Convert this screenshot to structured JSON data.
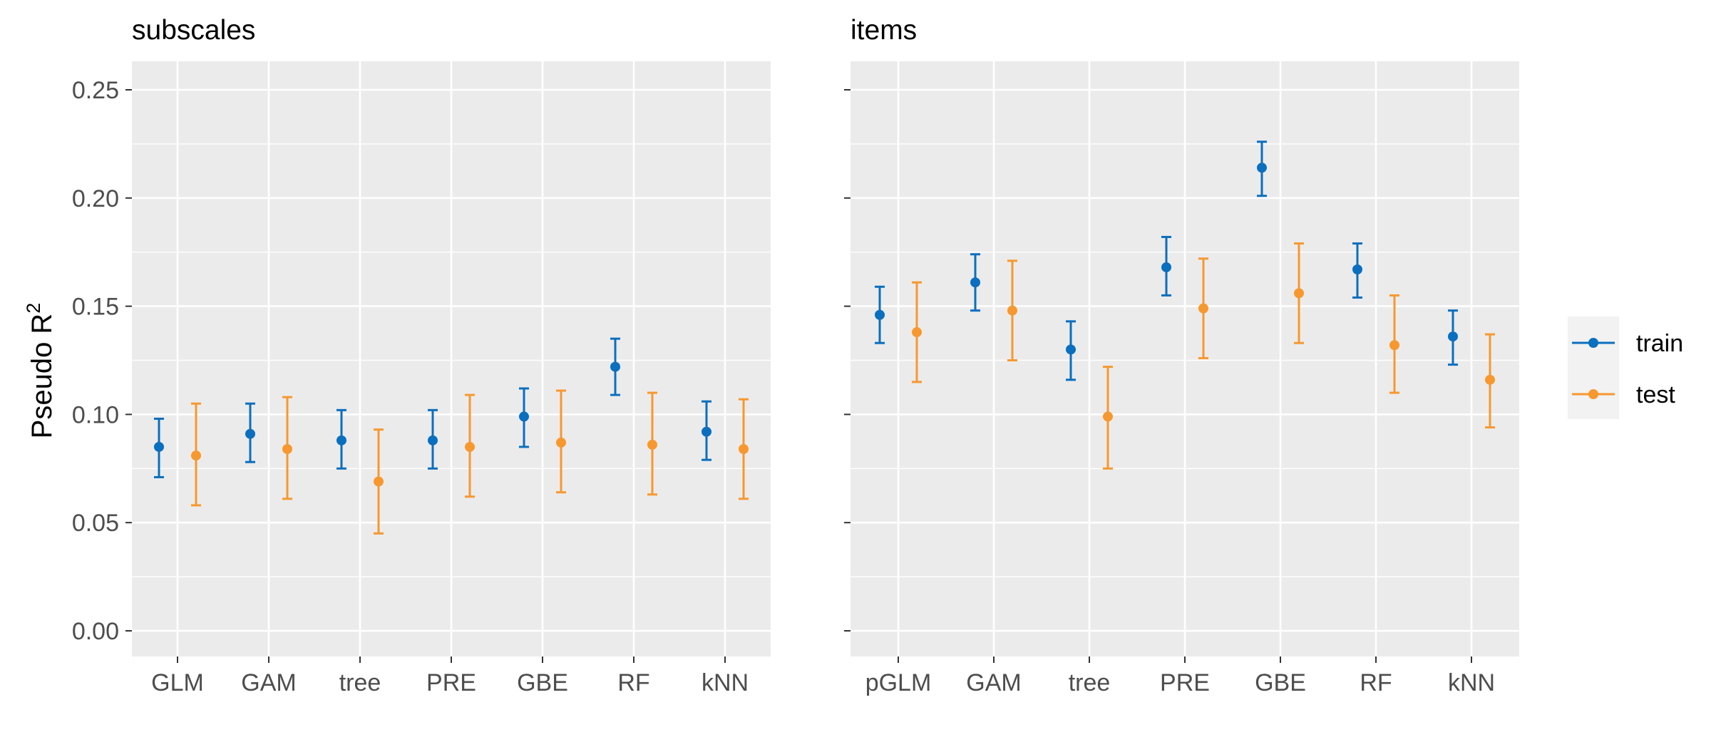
{
  "colors": {
    "train": "#0a6fbf",
    "test": "#f7982f",
    "panel_bg": "#ebebeb",
    "grid": "#ffffff"
  },
  "chart_data": [
    {
      "type": "scatter",
      "title": "subscales",
      "ylabel": "Pseudo R",
      "ylabel_superscript": "2",
      "ylim": [
        0,
        0.26
      ],
      "yticks": [
        "0.00",
        "0.05",
        "0.10",
        "0.15",
        "0.20",
        "0.25"
      ],
      "ytick_values": [
        0,
        0.05,
        0.1,
        0.15,
        0.2,
        0.25
      ],
      "categories": [
        "GLM",
        "GAM",
        "tree",
        "PRE",
        "GBE",
        "RF",
        "kNN"
      ],
      "errorbars": true,
      "series": [
        {
          "name": "train",
          "values": [
            0.085,
            0.091,
            0.088,
            0.088,
            0.099,
            0.122,
            0.092
          ],
          "lower": [
            0.071,
            0.078,
            0.075,
            0.075,
            0.085,
            0.109,
            0.079
          ],
          "upper": [
            0.098,
            0.105,
            0.102,
            0.102,
            0.112,
            0.135,
            0.106
          ]
        },
        {
          "name": "test",
          "values": [
            0.081,
            0.084,
            0.069,
            0.085,
            0.087,
            0.086,
            0.084
          ],
          "lower": [
            0.058,
            0.061,
            0.045,
            0.062,
            0.064,
            0.063,
            0.061
          ],
          "upper": [
            0.105,
            0.108,
            0.093,
            0.109,
            0.111,
            0.11,
            0.107
          ]
        }
      ]
    },
    {
      "type": "scatter",
      "title": "items",
      "ylim": [
        0,
        0.26
      ],
      "categories": [
        "pGLM",
        "GAM",
        "tree",
        "PRE",
        "GBE",
        "RF",
        "kNN"
      ],
      "errorbars": true,
      "series": [
        {
          "name": "train",
          "values": [
            0.146,
            0.161,
            0.13,
            0.168,
            0.214,
            0.167,
            0.136
          ],
          "lower": [
            0.133,
            0.148,
            0.116,
            0.155,
            0.201,
            0.154,
            0.123
          ],
          "upper": [
            0.159,
            0.174,
            0.143,
            0.182,
            0.226,
            0.179,
            0.148
          ]
        },
        {
          "name": "test",
          "values": [
            0.138,
            0.148,
            0.099,
            0.149,
            0.156,
            0.132,
            0.116
          ],
          "lower": [
            0.115,
            0.125,
            0.075,
            0.126,
            0.133,
            0.11,
            0.094
          ],
          "upper": [
            0.161,
            0.171,
            0.122,
            0.172,
            0.179,
            0.155,
            0.137
          ]
        }
      ]
    }
  ],
  "legend": {
    "items": [
      {
        "label": "train",
        "color": "#0a6fbf"
      },
      {
        "label": "test",
        "color": "#f7982f"
      }
    ],
    "position": "right"
  }
}
